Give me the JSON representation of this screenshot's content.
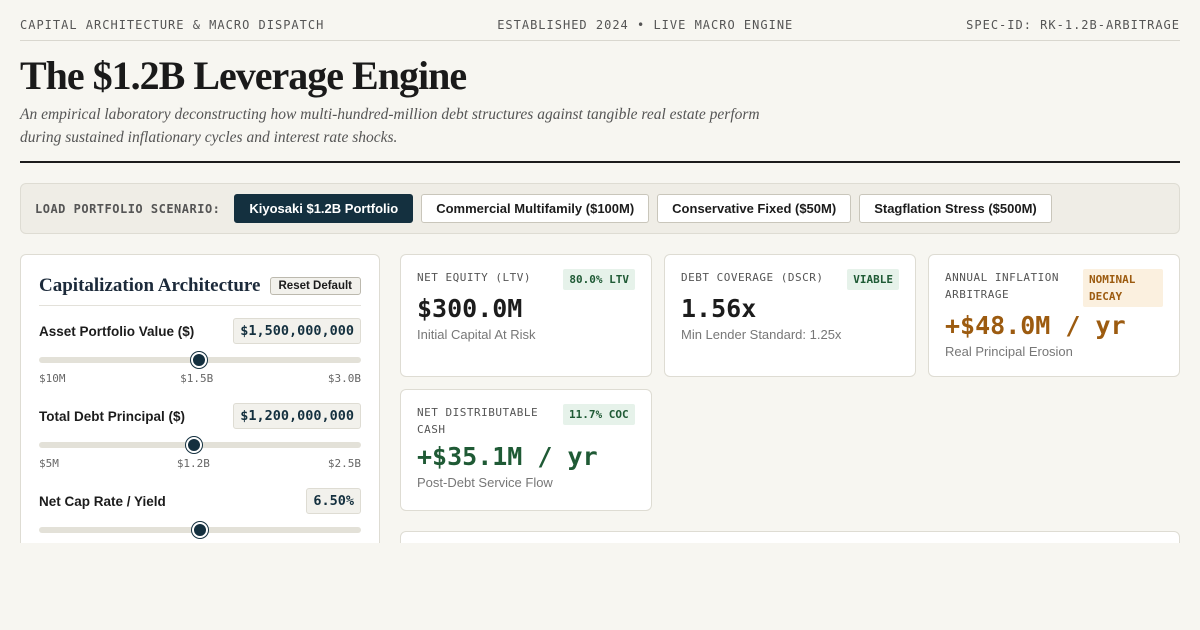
{
  "header": {
    "left": "CAPITAL ARCHITECTURE & MACRO DISPATCH",
    "center": "ESTABLISHED 2024 • LIVE MACRO ENGINE",
    "right": "SPEC-ID: RK-1.2B-ARBITRAGE"
  },
  "title": "The $1.2B Leverage Engine",
  "subtitle": "An empirical laboratory deconstructing how multi-hundred-million debt structures against tangible real estate perform during sustained inflationary cycles and interest rate shocks.",
  "scenarios": {
    "label": "LOAD PORTFOLIO SCENARIO:",
    "items": [
      {
        "label": "Kiyosaki $1.2B Portfolio",
        "active": true
      },
      {
        "label": "Commercial Multifamily ($100M)",
        "active": false
      },
      {
        "label": "Conservative Fixed ($50M)",
        "active": false
      },
      {
        "label": "Stagflation Stress ($500M)",
        "active": false
      }
    ]
  },
  "panel": {
    "title": "Capitalization Architecture",
    "reset_label": "Reset Default",
    "fields": [
      {
        "label": "Asset Portfolio Value ($)",
        "value": "$1,500,000,000",
        "min": "$10M",
        "mid": "$1.5B",
        "max": "$3.0B",
        "level": 0.497
      },
      {
        "label": "Total Debt Principal ($)",
        "value": "$1,200,000,000",
        "min": "$5M",
        "mid": "$1.2B",
        "max": "$2.5B",
        "level": 0.48
      },
      {
        "label": "Net Cap Rate / Yield",
        "value": "6.50%",
        "level": 0.5
      }
    ]
  },
  "cards": [
    {
      "label": "NET EQUITY (LTV)",
      "badge": "80.0% LTV",
      "value": "$300.0M",
      "sub": "Initial Capital At Risk",
      "color": "#1c1c1c",
      "badge_style": "green"
    },
    {
      "label": "DEBT COVERAGE (DSCR)",
      "badge": "VIABLE",
      "value": "1.56x",
      "sub": "Min Lender Standard: 1.25x",
      "color": "#1c1c1c",
      "badge_style": "green"
    },
    {
      "label": "ANNUAL INFLATION ARBITRAGE",
      "badge": "NOMINAL DECAY",
      "value": "+$48.0M / yr",
      "sub": "Real Principal Erosion",
      "color": "#9c5b10",
      "badge_style": "amber"
    },
    {
      "label": "NET DISTRIBUTABLE CASH",
      "badge": "11.7% COC",
      "value": "+$35.1M / yr",
      "sub": "Post-Debt Service Flow",
      "color": "#1f5a35",
      "badge_style": "green"
    }
  ]
}
